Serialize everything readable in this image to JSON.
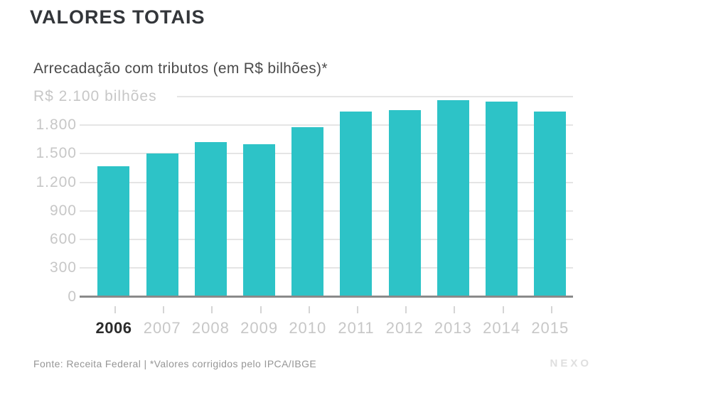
{
  "header": {
    "title": "VALORES TOTAIS"
  },
  "chart": {
    "subtitle": "Arrecadação com tributos (em R$ bilhões)*"
  },
  "chart_data": {
    "type": "bar",
    "title": "VALORES TOTAIS",
    "subtitle": "Arrecadação com tributos (em R$ bilhões)*",
    "unit": "R$ bilhões",
    "categories": [
      "2006",
      "2007",
      "2008",
      "2009",
      "2010",
      "2011",
      "2012",
      "2013",
      "2014",
      "2015"
    ],
    "values": [
      1370,
      1500,
      1620,
      1600,
      1780,
      1940,
      1960,
      2060,
      2050,
      1940
    ],
    "ylim": [
      0,
      2100
    ],
    "yticks": [
      {
        "value": 2100,
        "label": "R$ 2.100 bilhões"
      },
      {
        "value": 1800,
        "label": "1.800"
      },
      {
        "value": 1500,
        "label": "1.500"
      },
      {
        "value": 1200,
        "label": "1.200"
      },
      {
        "value": 900,
        "label": "900"
      },
      {
        "value": 600,
        "label": "600"
      },
      {
        "value": 300,
        "label": "300"
      },
      {
        "value": 0,
        "label": "0"
      }
    ],
    "highlighted_category": "2006",
    "grid": true,
    "legend": null,
    "colors": {
      "bar": "#2dc3c7",
      "grid": "#e5e5e5",
      "baseline": "#8a8a8a",
      "axis_label": "#c7c7c7",
      "highlight_label": "#2b2b2b"
    }
  },
  "footer": {
    "source": "Fonte: Receita Federal | *Valores corrigidos pelo IPCA/IBGE",
    "logo": "NEXO"
  }
}
